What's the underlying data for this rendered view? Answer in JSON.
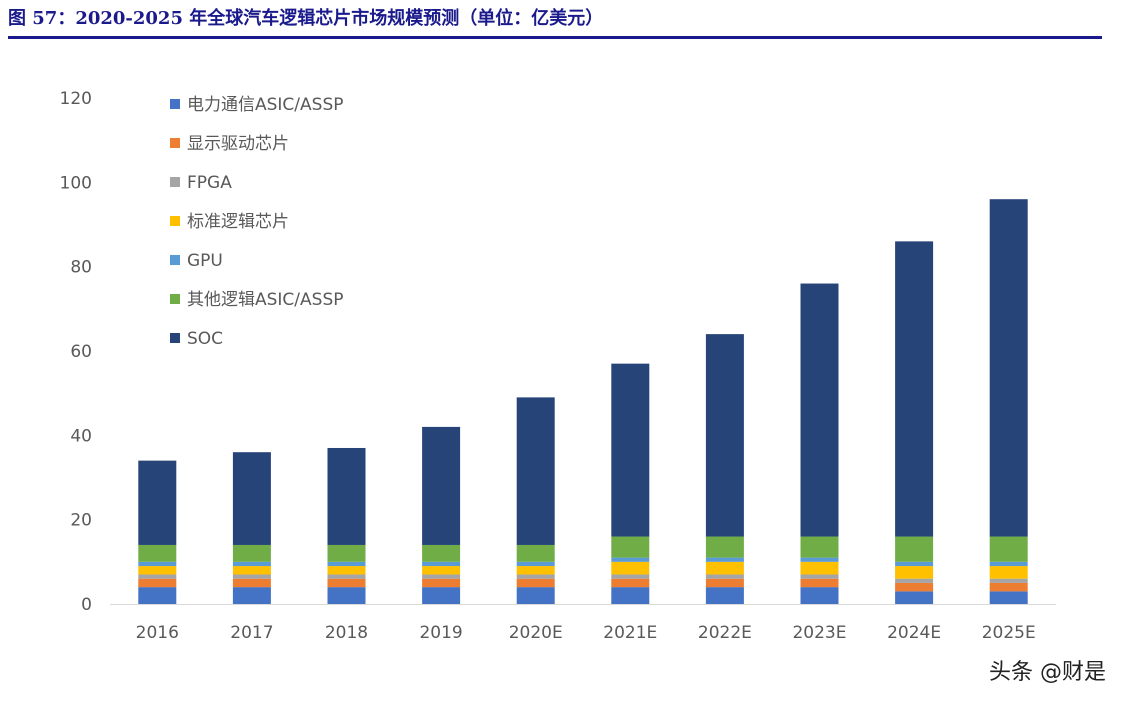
{
  "title": "图 57：2020-2025 年全球汽车逻辑芯片市场规模预测（单位：亿美元）",
  "watermark": "头条 @财是",
  "chart_data": {
    "type": "bar",
    "stacked": true,
    "categories": [
      "2016",
      "2017",
      "2018",
      "2019",
      "2020E",
      "2021E",
      "2022E",
      "2023E",
      "2024E",
      "2025E"
    ],
    "ylim": [
      0,
      120
    ],
    "yticks": [
      0,
      20,
      40,
      60,
      80,
      100,
      120
    ],
    "grid": false,
    "legend": "top-left",
    "series": [
      {
        "name": "电力通信ASIC/ASSP",
        "color": "#4472C4",
        "values": [
          4,
          4,
          4,
          4,
          4,
          4,
          4,
          4,
          3,
          3
        ]
      },
      {
        "name": "显示驱动芯片",
        "color": "#ED7D31",
        "values": [
          2,
          2,
          2,
          2,
          2,
          2,
          2,
          2,
          2,
          2
        ]
      },
      {
        "name": "FPGA",
        "color": "#A5A5A5",
        "values": [
          1,
          1,
          1,
          1,
          1,
          1,
          1,
          1,
          1,
          1
        ]
      },
      {
        "name": "标准逻辑芯片",
        "color": "#FFC000",
        "values": [
          2,
          2,
          2,
          2,
          2,
          3,
          3,
          3,
          3,
          3
        ]
      },
      {
        "name": "GPU",
        "color": "#5B9BD5",
        "values": [
          1,
          1,
          1,
          1,
          1,
          1,
          1,
          1,
          1,
          1
        ]
      },
      {
        "name": "其他逻辑ASIC/ASSP",
        "color": "#70AD47",
        "values": [
          4,
          4,
          4,
          4,
          4,
          5,
          5,
          5,
          6,
          6
        ]
      },
      {
        "name": "SOC",
        "color": "#264478",
        "values": [
          20,
          22,
          23,
          28,
          35,
          41,
          48,
          60,
          70,
          80
        ]
      }
    ]
  }
}
